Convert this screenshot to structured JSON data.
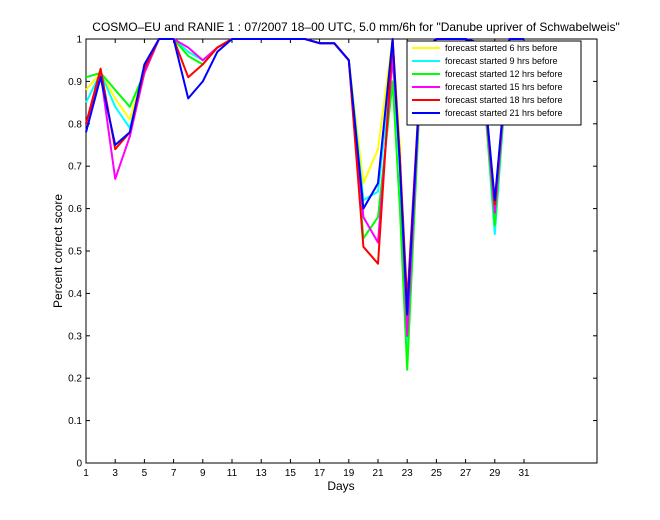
{
  "chart_data": {
    "type": "line",
    "title": "COSMO–EU and RANIE 1 : 07/2007 18–00 UTC, 5.0 mm/6h for \"Danube upriver of Schwabelweis\"",
    "xlabel": "Days",
    "ylabel": "Percent correct score",
    "xlim": [
      1,
      36
    ],
    "ylim": [
      0,
      1
    ],
    "xticks": [
      1,
      3,
      5,
      7,
      9,
      11,
      13,
      15,
      17,
      19,
      21,
      23,
      25,
      27,
      29,
      31
    ],
    "xtick_labels": [
      "1",
      "3",
      "5",
      "7",
      "9",
      "11",
      "13",
      "15",
      "17",
      "19",
      "21",
      "23",
      "25",
      "27",
      "29",
      "31"
    ],
    "yticks": [
      0,
      0.1,
      0.2,
      0.3,
      0.4,
      0.5,
      0.6,
      0.7,
      0.8,
      0.9,
      1
    ],
    "ytick_labels": [
      "0",
      "0.1",
      "0.2",
      "0.3",
      "0.4",
      "0.5",
      "0.6",
      "0.7",
      "0.8",
      "0.9",
      "1"
    ],
    "grid": false,
    "legend_position": "top-right",
    "x": [
      1,
      2,
      3,
      4,
      5,
      6,
      7,
      8,
      9,
      10,
      11,
      12,
      13,
      14,
      15,
      16,
      17,
      18,
      19,
      20,
      21,
      22,
      22.5,
      23,
      24,
      25,
      26,
      27,
      28,
      29,
      30,
      31
    ],
    "series": [
      {
        "name": "forecast started 6 hrs before",
        "color": "#ffff00",
        "values": [
          0.88,
          0.92,
          0.86,
          0.81,
          0.93,
          1.0,
          1.0,
          0.97,
          0.95,
          0.98,
          1.0,
          1.0,
          1.0,
          1.0,
          1.0,
          1.0,
          0.99,
          0.99,
          0.95,
          0.66,
          0.74,
          1.0,
          0.75,
          0.26,
          0.97,
          1.0,
          1.0,
          1.0,
          0.99,
          0.57,
          1.0,
          1.0
        ]
      },
      {
        "name": "forecast started 9 hrs before",
        "color": "#00ffff",
        "values": [
          0.85,
          0.92,
          0.84,
          0.79,
          0.92,
          1.0,
          1.0,
          0.97,
          0.95,
          0.98,
          1.0,
          1.0,
          1.0,
          1.0,
          1.0,
          1.0,
          0.99,
          0.99,
          0.95,
          0.62,
          0.64,
          0.95,
          0.7,
          0.27,
          0.96,
          1.0,
          1.0,
          1.0,
          0.99,
          0.54,
          1.0,
          1.0
        ]
      },
      {
        "name": "forecast started 12 hrs before",
        "color": "#00ff00",
        "values": [
          0.91,
          0.92,
          0.88,
          0.84,
          0.92,
          1.0,
          1.0,
          0.96,
          0.94,
          0.98,
          1.0,
          1.0,
          1.0,
          1.0,
          1.0,
          1.0,
          0.99,
          0.99,
          0.95,
          0.53,
          0.58,
          0.9,
          0.6,
          0.22,
          0.96,
          1.0,
          1.0,
          1.0,
          0.98,
          0.56,
          1.0,
          1.0
        ]
      },
      {
        "name": "forecast started 15 hrs before",
        "color": "#ff00ff",
        "values": [
          0.8,
          0.92,
          0.67,
          0.77,
          0.92,
          1.0,
          1.0,
          0.98,
          0.95,
          0.98,
          1.0,
          1.0,
          1.0,
          1.0,
          1.0,
          1.0,
          0.99,
          0.99,
          0.95,
          0.58,
          0.52,
          0.96,
          0.72,
          0.3,
          0.97,
          1.0,
          1.0,
          1.0,
          0.99,
          0.59,
          1.0,
          1.0
        ]
      },
      {
        "name": "forecast started 18 hrs before",
        "color": "#ff0000",
        "values": [
          0.8,
          0.93,
          0.74,
          0.78,
          0.93,
          1.0,
          1.0,
          0.91,
          0.94,
          0.98,
          1.0,
          1.0,
          1.0,
          1.0,
          1.0,
          1.0,
          0.99,
          0.99,
          0.95,
          0.51,
          0.47,
          1.0,
          0.72,
          0.38,
          0.97,
          1.0,
          1.0,
          1.0,
          0.99,
          0.61,
          1.0,
          1.0
        ]
      },
      {
        "name": "forecast started 21 hrs before",
        "color": "#0000ff",
        "values": [
          0.78,
          0.91,
          0.75,
          0.78,
          0.94,
          1.0,
          1.0,
          0.86,
          0.9,
          0.97,
          1.0,
          1.0,
          1.0,
          1.0,
          1.0,
          1.0,
          0.99,
          0.99,
          0.95,
          0.6,
          0.66,
          1.0,
          0.7,
          0.35,
          0.97,
          1.0,
          1.0,
          1.0,
          0.99,
          0.62,
          1.0,
          1.0
        ]
      }
    ]
  }
}
